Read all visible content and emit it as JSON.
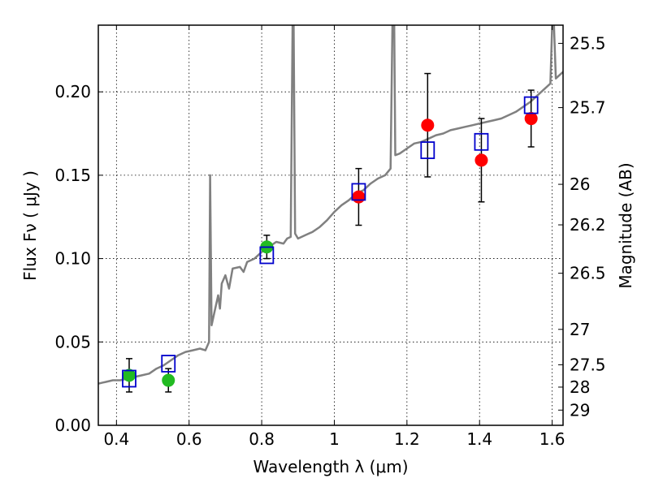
{
  "chart_data": {
    "type": "scatter",
    "xlabel": "Wavelength  λ (μm)",
    "ylabel": "Flux  Fν  ( μJy )",
    "y2label": "Magnitude (AB)",
    "xlim": [
      0.35,
      1.63
    ],
    "ylim": [
      0.0,
      0.24
    ],
    "grid": true,
    "x_ticks": [
      {
        "value": 0.4,
        "label": "0.4"
      },
      {
        "value": 0.6,
        "label": "0.6"
      },
      {
        "value": 0.8,
        "label": "0.8"
      },
      {
        "value": 1.0,
        "label": "1"
      },
      {
        "value": 1.2,
        "label": "1.2"
      },
      {
        "value": 1.4,
        "label": "1.4"
      },
      {
        "value": 1.6,
        "label": "1.6"
      }
    ],
    "y_ticks": [
      {
        "value": 0.0,
        "label": "0.00"
      },
      {
        "value": 0.05,
        "label": "0.05"
      },
      {
        "value": 0.1,
        "label": "0.10"
      },
      {
        "value": 0.15,
        "label": "0.15"
      },
      {
        "value": 0.2,
        "label": "0.20"
      }
    ],
    "y2_ticks": [
      {
        "value": 25.5,
        "label": "25.5"
      },
      {
        "value": 25.7,
        "label": "25.7"
      },
      {
        "value": 26.0,
        "label": "26"
      },
      {
        "value": 26.2,
        "label": "26.2"
      },
      {
        "value": 26.5,
        "label": "26.5"
      },
      {
        "value": 27.0,
        "label": "27"
      },
      {
        "value": 27.5,
        "label": "27.5"
      },
      {
        "value": 28.0,
        "label": "28"
      },
      {
        "value": 29.0,
        "label": "29"
      }
    ],
    "series": [
      {
        "marker": "circle",
        "color": "#22bb22",
        "points": [
          {
            "x": 0.435,
            "y": 0.03,
            "err": 0.01
          },
          {
            "x": 0.543,
            "y": 0.027,
            "err": 0.007
          },
          {
            "x": 0.814,
            "y": 0.107,
            "err": 0.007
          }
        ]
      },
      {
        "marker": "circle",
        "color": "#ff0000",
        "points": [
          {
            "x": 1.067,
            "y": 0.137,
            "err": 0.017
          },
          {
            "x": 1.257,
            "y": 0.18,
            "err": 0.031
          },
          {
            "x": 1.405,
            "y": 0.159,
            "err": 0.025
          },
          {
            "x": 1.542,
            "y": 0.184,
            "err": 0.017
          }
        ]
      },
      {
        "marker": "square",
        "color": "#0000cc",
        "points": [
          {
            "x": 0.435,
            "y": 0.028
          },
          {
            "x": 0.543,
            "y": 0.037
          },
          {
            "x": 0.814,
            "y": 0.102
          },
          {
            "x": 1.067,
            "y": 0.14
          },
          {
            "x": 1.257,
            "y": 0.165
          },
          {
            "x": 1.405,
            "y": 0.17
          },
          {
            "x": 1.542,
            "y": 0.192
          }
        ]
      }
    ],
    "spectrum": {
      "color": "#808080",
      "points": [
        [
          0.35,
          0.025
        ],
        [
          0.37,
          0.026
        ],
        [
          0.39,
          0.027
        ],
        [
          0.41,
          0.027
        ],
        [
          0.43,
          0.028
        ],
        [
          0.45,
          0.029
        ],
        [
          0.47,
          0.03
        ],
        [
          0.49,
          0.031
        ],
        [
          0.51,
          0.034
        ],
        [
          0.53,
          0.036
        ],
        [
          0.55,
          0.039
        ],
        [
          0.57,
          0.042
        ],
        [
          0.59,
          0.044
        ],
        [
          0.61,
          0.045
        ],
        [
          0.63,
          0.046
        ],
        [
          0.645,
          0.045
        ],
        [
          0.655,
          0.05
        ],
        [
          0.658,
          0.15
        ],
        [
          0.662,
          0.06
        ],
        [
          0.67,
          0.068
        ],
        [
          0.68,
          0.078
        ],
        [
          0.685,
          0.07
        ],
        [
          0.69,
          0.085
        ],
        [
          0.7,
          0.09
        ],
        [
          0.71,
          0.082
        ],
        [
          0.72,
          0.094
        ],
        [
          0.74,
          0.095
        ],
        [
          0.75,
          0.092
        ],
        [
          0.76,
          0.098
        ],
        [
          0.78,
          0.1
        ],
        [
          0.8,
          0.104
        ],
        [
          0.82,
          0.107
        ],
        [
          0.84,
          0.11
        ],
        [
          0.86,
          0.109
        ],
        [
          0.87,
          0.112
        ],
        [
          0.88,
          0.113
        ],
        [
          0.885,
          0.24
        ],
        [
          0.888,
          0.24
        ],
        [
          0.892,
          0.115
        ],
        [
          0.9,
          0.112
        ],
        [
          0.92,
          0.114
        ],
        [
          0.94,
          0.116
        ],
        [
          0.96,
          0.119
        ],
        [
          0.98,
          0.123
        ],
        [
          1.0,
          0.128
        ],
        [
          1.02,
          0.132
        ],
        [
          1.04,
          0.135
        ],
        [
          1.06,
          0.139
        ],
        [
          1.08,
          0.141
        ],
        [
          1.1,
          0.145
        ],
        [
          1.12,
          0.148
        ],
        [
          1.14,
          0.15
        ],
        [
          1.155,
          0.154
        ],
        [
          1.16,
          0.24
        ],
        [
          1.165,
          0.24
        ],
        [
          1.168,
          0.162
        ],
        [
          1.18,
          0.163
        ],
        [
          1.2,
          0.166
        ],
        [
          1.22,
          0.169
        ],
        [
          1.24,
          0.17
        ],
        [
          1.26,
          0.172
        ],
        [
          1.28,
          0.174
        ],
        [
          1.3,
          0.175
        ],
        [
          1.32,
          0.177
        ],
        [
          1.34,
          0.178
        ],
        [
          1.36,
          0.179
        ],
        [
          1.38,
          0.18
        ],
        [
          1.4,
          0.181
        ],
        [
          1.42,
          0.182
        ],
        [
          1.44,
          0.183
        ],
        [
          1.46,
          0.184
        ],
        [
          1.48,
          0.186
        ],
        [
          1.5,
          0.188
        ],
        [
          1.52,
          0.191
        ],
        [
          1.54,
          0.194
        ],
        [
          1.56,
          0.198
        ],
        [
          1.58,
          0.202
        ],
        [
          1.595,
          0.205
        ],
        [
          1.6,
          0.24
        ],
        [
          1.605,
          0.24
        ],
        [
          1.61,
          0.208
        ],
        [
          1.63,
          0.212
        ]
      ]
    }
  }
}
